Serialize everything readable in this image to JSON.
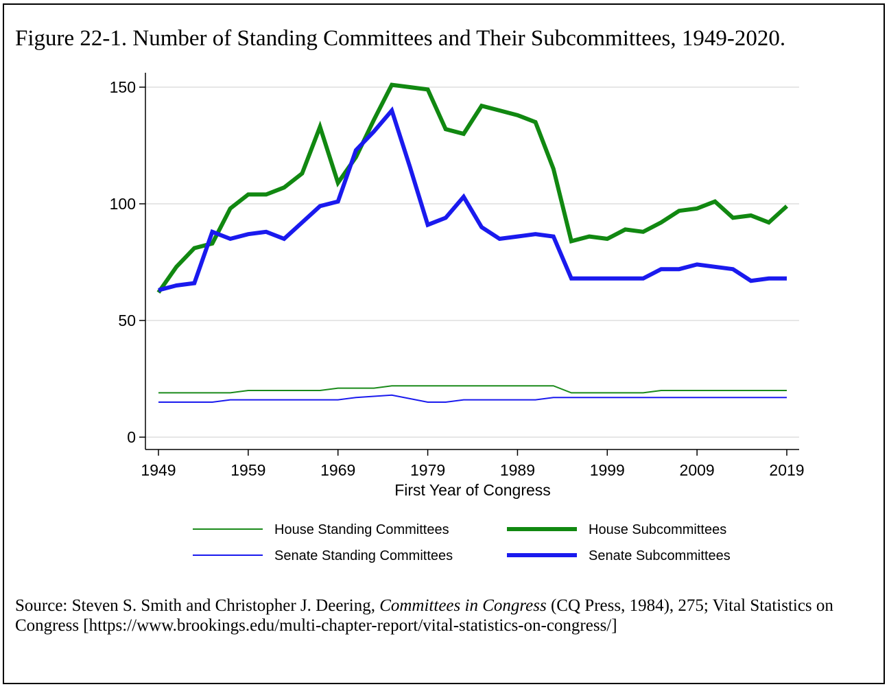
{
  "figure": {
    "title": "Figure 22-1. Number of Standing Committees and Their Subcommittees, 1949-2020."
  },
  "chart_data": {
    "type": "line",
    "xlabel": "First Year of Congress",
    "ylabel": "",
    "xlim": [
      1949,
      2019
    ],
    "ylim": [
      0,
      150
    ],
    "x_ticks": [
      1949,
      1959,
      1969,
      1979,
      1989,
      1999,
      2009,
      2019
    ],
    "y_ticks": [
      0,
      50,
      100,
      150
    ],
    "grid": true,
    "legend_position": "bottom",
    "series": [
      {
        "name": "House Standing Committees",
        "color": "#1a8a1a",
        "style": "thin",
        "x": [
          1949,
          1951,
          1953,
          1955,
          1957,
          1959,
          1961,
          1963,
          1965,
          1967,
          1969,
          1971,
          1973,
          1975,
          1977,
          1979,
          1981,
          1983,
          1985,
          1987,
          1989,
          1991,
          1993,
          1995,
          1997,
          1999,
          2001,
          2003,
          2005,
          2007,
          2009,
          2011,
          2013,
          2015,
          2017,
          2019
        ],
        "values": [
          19,
          19,
          19,
          19,
          19,
          20,
          20,
          20,
          20,
          20,
          21,
          21,
          21,
          22,
          22,
          22,
          22,
          22,
          22,
          22,
          22,
          22,
          22,
          19,
          19,
          19,
          19,
          19,
          20,
          20,
          20,
          20,
          20,
          20,
          20,
          20
        ]
      },
      {
        "name": "Senate Standing Committees",
        "color": "#1a1aee",
        "style": "thin",
        "x": [
          1949,
          1951,
          1953,
          1955,
          1957,
          1959,
          1961,
          1963,
          1965,
          1967,
          1969,
          1971,
          1973,
          1975,
          1977,
          1979,
          1981,
          1983,
          1985,
          1987,
          1989,
          1991,
          1993,
          1995,
          1997,
          1999,
          2001,
          2003,
          2005,
          2007,
          2009,
          2011,
          2013,
          2015,
          2017,
          2019
        ],
        "values": [
          15,
          15,
          15,
          15,
          16,
          16,
          16,
          16,
          16,
          16,
          16,
          17,
          17.5,
          18,
          16.5,
          15,
          15,
          16,
          16,
          16,
          16,
          16,
          17,
          17,
          17,
          17,
          17,
          17,
          17,
          17,
          17,
          17,
          17,
          17,
          17,
          17
        ]
      },
      {
        "name": "House Subcommittees",
        "color": "#118811",
        "style": "thick",
        "x": [
          1949,
          1951,
          1953,
          1955,
          1957,
          1959,
          1961,
          1963,
          1965,
          1967,
          1969,
          1971,
          1973,
          1975,
          1977,
          1979,
          1981,
          1983,
          1985,
          1987,
          1989,
          1991,
          1993,
          1995,
          1997,
          1999,
          2001,
          2003,
          2005,
          2007,
          2009,
          2011,
          2013,
          2015,
          2017,
          2019
        ],
        "values": [
          62,
          73,
          81,
          83,
          98,
          104,
          104,
          107,
          113,
          133,
          109,
          120,
          136,
          151,
          150,
          149,
          132,
          130,
          142,
          140,
          138,
          135,
          115,
          84,
          86,
          85,
          89,
          88,
          92,
          97,
          98,
          101,
          94,
          95,
          92,
          99
        ]
      },
      {
        "name": "Senate Subcommittees",
        "color": "#1a1aee",
        "style": "thick",
        "x": [
          1949,
          1951,
          1953,
          1955,
          1957,
          1959,
          1961,
          1963,
          1965,
          1967,
          1969,
          1971,
          1973,
          1975,
          1977,
          1979,
          1981,
          1983,
          1985,
          1987,
          1989,
          1991,
          1993,
          1995,
          1997,
          1999,
          2001,
          2003,
          2005,
          2007,
          2009,
          2011,
          2013,
          2015,
          2017,
          2019
        ],
        "values": [
          63,
          65,
          66,
          88,
          85,
          87,
          88,
          85,
          92,
          99,
          101,
          123,
          131,
          140,
          116,
          91,
          94,
          103,
          90,
          85,
          86,
          87,
          86,
          68,
          68,
          68,
          68,
          68,
          72,
          72,
          74,
          73,
          72,
          67,
          68,
          68
        ]
      }
    ]
  },
  "source": {
    "prefix": "Source: Steven S. Smith and Christopher J. Deering, ",
    "book_title": "Committees in Congress",
    "suffix": " (CQ Press, 1984), 275; Vital Statistics on Congress [https://www.brookings.edu/multi-chapter-report/vital-statistics-on-congress/]"
  }
}
